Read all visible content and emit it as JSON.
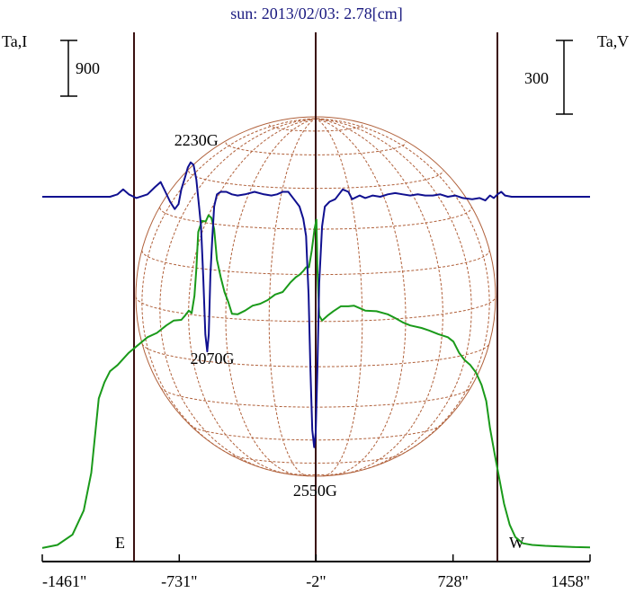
{
  "chart_data": {
    "type": "line",
    "title": "sun: 2013/02/03: 2.78[cm]",
    "left_axis_label": "Ta,I",
    "right_axis_label": "Ta,V",
    "left_scale_bar": "900",
    "right_scale_bar": "300",
    "x_ticks": [
      {
        "value": -1461,
        "label": "-1461\""
      },
      {
        "value": -731,
        "label": "-731\""
      },
      {
        "value": -2,
        "label": "-2\""
      },
      {
        "value": 728,
        "label": "728\""
      },
      {
        "value": 1458,
        "label": "1458\""
      }
    ],
    "limb_labels": {
      "east": "E",
      "west": "W"
    },
    "xlim": [
      -1461,
      1458
    ],
    "annotations": [
      {
        "text": "2230G",
        "x": -640
      },
      {
        "text": "2070G",
        "x": -555
      },
      {
        "text": "2550G",
        "x": -7
      }
    ],
    "series": [
      {
        "name": "Ta,I",
        "color": "#1a9a1a",
        "points": [
          [
            -1461,
            45
          ],
          [
            -1380,
            95
          ],
          [
            -1300,
            260
          ],
          [
            -1240,
            650
          ],
          [
            -1200,
            1260
          ],
          [
            -1160,
            2460
          ],
          [
            -1130,
            2720
          ],
          [
            -1100,
            2900
          ],
          [
            -1060,
            3000
          ],
          [
            -1000,
            3200
          ],
          [
            -960,
            3300
          ],
          [
            -900,
            3450
          ],
          [
            -850,
            3520
          ],
          [
            -800,
            3640
          ],
          [
            -760,
            3720
          ],
          [
            -720,
            3730
          ],
          [
            -700,
            3800
          ],
          [
            -680,
            3880
          ],
          [
            -665,
            3840
          ],
          [
            -650,
            4120
          ],
          [
            -640,
            4550
          ],
          [
            -630,
            5150
          ],
          [
            -610,
            5330
          ],
          [
            -590,
            5320
          ],
          [
            -575,
            5420
          ],
          [
            -560,
            5380
          ],
          [
            -545,
            5200
          ],
          [
            -530,
            4700
          ],
          [
            -510,
            4420
          ],
          [
            -490,
            4180
          ],
          [
            -470,
            4020
          ],
          [
            -450,
            3830
          ],
          [
            -420,
            3820
          ],
          [
            -380,
            3880
          ],
          [
            -340,
            3960
          ],
          [
            -300,
            3990
          ],
          [
            -260,
            4050
          ],
          [
            -220,
            4140
          ],
          [
            -180,
            4180
          ],
          [
            -140,
            4330
          ],
          [
            -110,
            4420
          ],
          [
            -90,
            4460
          ],
          [
            -70,
            4520
          ],
          [
            -55,
            4580
          ],
          [
            -40,
            4580
          ],
          [
            -25,
            4850
          ],
          [
            -10,
            5200
          ],
          [
            0,
            5350
          ],
          [
            5,
            4550
          ],
          [
            15,
            3800
          ],
          [
            30,
            3720
          ],
          [
            60,
            3800
          ],
          [
            90,
            3870
          ],
          [
            130,
            3950
          ],
          [
            170,
            3950
          ],
          [
            200,
            3960
          ],
          [
            260,
            3880
          ],
          [
            320,
            3870
          ],
          [
            380,
            3820
          ],
          [
            420,
            3760
          ],
          [
            460,
            3690
          ],
          [
            500,
            3640
          ],
          [
            560,
            3600
          ],
          [
            600,
            3560
          ],
          [
            650,
            3500
          ],
          [
            700,
            3450
          ],
          [
            730,
            3380
          ],
          [
            760,
            3200
          ],
          [
            790,
            3080
          ],
          [
            820,
            3000
          ],
          [
            850,
            2880
          ],
          [
            880,
            2680
          ],
          [
            905,
            2420
          ],
          [
            925,
            1980
          ],
          [
            950,
            1560
          ],
          [
            975,
            1160
          ],
          [
            1000,
            760
          ],
          [
            1030,
            420
          ],
          [
            1060,
            220
          ],
          [
            1100,
            120
          ],
          [
            1150,
            95
          ],
          [
            1220,
            80
          ],
          [
            1300,
            70
          ],
          [
            1380,
            60
          ],
          [
            1458,
            55
          ]
        ]
      },
      {
        "name": "Ta,V",
        "color": "#101090",
        "points": [
          [
            -1461,
            0
          ],
          [
            -1200,
            0
          ],
          [
            -1100,
            0
          ],
          [
            -1060,
            10
          ],
          [
            -1030,
            30
          ],
          [
            -1000,
            10
          ],
          [
            -960,
            -5
          ],
          [
            -900,
            10
          ],
          [
            -860,
            40
          ],
          [
            -830,
            60
          ],
          [
            -805,
            20
          ],
          [
            -780,
            -20
          ],
          [
            -755,
            -50
          ],
          [
            -735,
            -30
          ],
          [
            -720,
            30
          ],
          [
            -700,
            80
          ],
          [
            -685,
            120
          ],
          [
            -670,
            140
          ],
          [
            -655,
            130
          ],
          [
            -640,
            70
          ],
          [
            -628,
            -20
          ],
          [
            -615,
            -120
          ],
          [
            -603,
            -330
          ],
          [
            -592,
            -560
          ],
          [
            -582,
            -630
          ],
          [
            -574,
            -560
          ],
          [
            -565,
            -320
          ],
          [
            -555,
            -170
          ],
          [
            -545,
            -40
          ],
          [
            -530,
            10
          ],
          [
            -510,
            20
          ],
          [
            -480,
            20
          ],
          [
            -450,
            10
          ],
          [
            -420,
            5
          ],
          [
            -380,
            10
          ],
          [
            -330,
            20
          ],
          [
            -280,
            10
          ],
          [
            -240,
            5
          ],
          [
            -210,
            10
          ],
          [
            -180,
            20
          ],
          [
            -150,
            20
          ],
          [
            -120,
            -10
          ],
          [
            -90,
            -40
          ],
          [
            -70,
            -90
          ],
          [
            -55,
            -160
          ],
          [
            -42,
            -400
          ],
          [
            -32,
            -700
          ],
          [
            -22,
            -950
          ],
          [
            -12,
            -1020
          ],
          [
            -4,
            -960
          ],
          [
            5,
            -700
          ],
          [
            15,
            -350
          ],
          [
            30,
            -120
          ],
          [
            45,
            -40
          ],
          [
            70,
            -20
          ],
          [
            100,
            -10
          ],
          [
            140,
            30
          ],
          [
            170,
            20
          ],
          [
            190,
            -10
          ],
          [
            230,
            5
          ],
          [
            260,
            -5
          ],
          [
            300,
            5
          ],
          [
            340,
            0
          ],
          [
            380,
            10
          ],
          [
            420,
            15
          ],
          [
            460,
            10
          ],
          [
            500,
            5
          ],
          [
            540,
            10
          ],
          [
            580,
            5
          ],
          [
            620,
            5
          ],
          [
            660,
            10
          ],
          [
            700,
            0
          ],
          [
            740,
            5
          ],
          [
            780,
            -5
          ],
          [
            830,
            -10
          ],
          [
            870,
            -5
          ],
          [
            900,
            -15
          ],
          [
            925,
            5
          ],
          [
            945,
            -5
          ],
          [
            965,
            10
          ],
          [
            985,
            20
          ],
          [
            1005,
            5
          ],
          [
            1040,
            0
          ],
          [
            1100,
            0
          ],
          [
            1458,
            0
          ]
        ]
      }
    ]
  }
}
